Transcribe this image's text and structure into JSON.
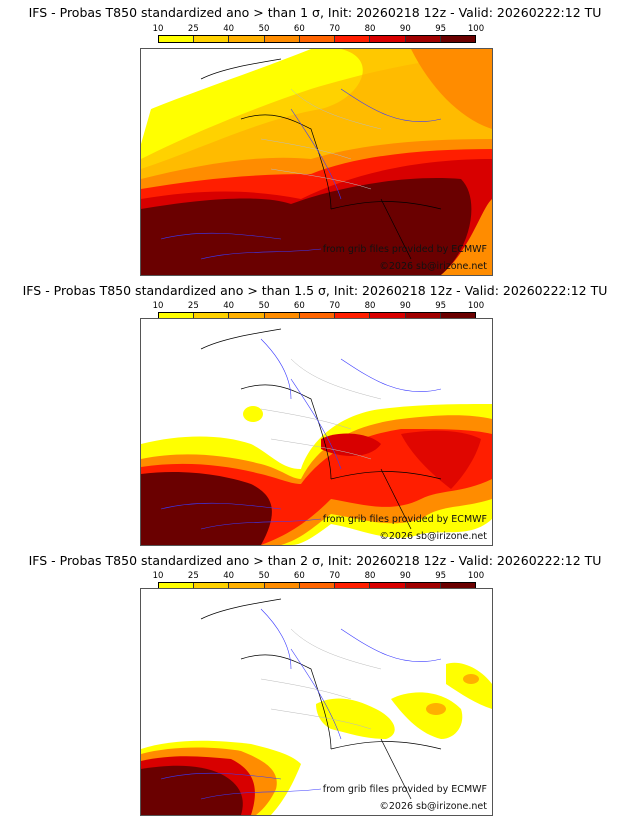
{
  "colorbar": {
    "ticks": [
      "10",
      "25",
      "40",
      "50",
      "60",
      "70",
      "80",
      "90",
      "95",
      "100"
    ],
    "colors": [
      "#ffff00",
      "#ffd200",
      "#ffb000",
      "#ff8c00",
      "#ff6400",
      "#ff1e00",
      "#d80000",
      "#a00000",
      "#6a0000"
    ]
  },
  "panels": [
    {
      "title": "IFS - Probas T850  standardized ano > than 1 σ, Init: 20260218 12z - Valid: 20260222:12 TU",
      "threshold": "1 σ"
    },
    {
      "title": "IFS - Probas T850  standardized ano > than 1.5 σ, Init: 20260218 12z - Valid: 20260222:12 TU",
      "threshold": "1.5 σ"
    },
    {
      "title": "IFS - Probas T850  standardized ano > than 2 σ, Init: 20260218 12z - Valid: 20260222:12 TU",
      "threshold": "2 σ"
    }
  ],
  "credits": {
    "source": "from grib files provided by ECMWF",
    "copyright": "©2026 sb@irizone.net"
  }
}
